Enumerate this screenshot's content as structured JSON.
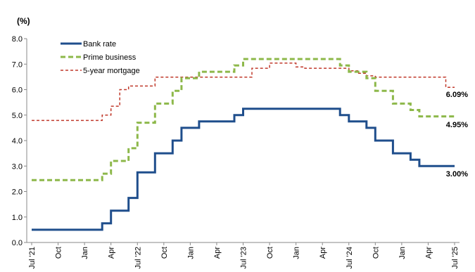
{
  "chart_data": {
    "type": "line",
    "ylabel": "(%)",
    "ylim": [
      0,
      8
    ],
    "yticks": [
      "0.0",
      "1.0",
      "2.0",
      "3.0",
      "4.0",
      "5.0",
      "6.0",
      "7.0",
      "8.0"
    ],
    "xticks": [
      "Jul '21",
      "Oct",
      "Jan",
      "Apr",
      "Jul '22",
      "Oct",
      "Jan",
      "Apr",
      "Jul '23",
      "Oct",
      "Jan",
      "Apr",
      "Jul '24",
      "Oct",
      "Jan",
      "Apr",
      "Jul '25"
    ],
    "legend_position": "top-left",
    "grid": false,
    "x_months": [
      "2021-07",
      "2021-08",
      "2021-09",
      "2021-10",
      "2021-11",
      "2021-12",
      "2022-01",
      "2022-02",
      "2022-03",
      "2022-04",
      "2022-05",
      "2022-06",
      "2022-07",
      "2022-08",
      "2022-09",
      "2022-10",
      "2022-11",
      "2022-12",
      "2023-01",
      "2023-02",
      "2023-03",
      "2023-04",
      "2023-05",
      "2023-06",
      "2023-07",
      "2023-08",
      "2023-09",
      "2023-10",
      "2023-11",
      "2023-12",
      "2024-01",
      "2024-02",
      "2024-03",
      "2024-04",
      "2024-05",
      "2024-06",
      "2024-07",
      "2024-08",
      "2024-09",
      "2024-10",
      "2024-11",
      "2024-12",
      "2025-01",
      "2025-02",
      "2025-03",
      "2025-04",
      "2025-05",
      "2025-06",
      "2025-07"
    ],
    "series": [
      {
        "name": "Bank rate",
        "color": "#1F4E8C",
        "style": "solid",
        "end_label": "3.00%",
        "values": [
          0.5,
          0.5,
          0.5,
          0.5,
          0.5,
          0.5,
          0.5,
          0.5,
          0.75,
          1.25,
          1.25,
          1.75,
          2.75,
          2.75,
          3.5,
          3.5,
          4.0,
          4.5,
          4.5,
          4.75,
          4.75,
          4.75,
          4.75,
          5.0,
          5.25,
          5.25,
          5.25,
          5.25,
          5.25,
          5.25,
          5.25,
          5.25,
          5.25,
          5.25,
          5.25,
          5.0,
          4.75,
          4.75,
          4.5,
          4.0,
          4.0,
          3.5,
          3.5,
          3.25,
          3.0,
          3.0,
          3.0,
          3.0,
          3.0
        ]
      },
      {
        "name": "Prime business",
        "color": "#8DB84A",
        "style": "dashed",
        "end_label": "4.95%",
        "values": [
          2.45,
          2.45,
          2.45,
          2.45,
          2.45,
          2.45,
          2.45,
          2.45,
          2.7,
          3.2,
          3.2,
          3.7,
          4.7,
          4.7,
          5.45,
          5.45,
          5.95,
          6.45,
          6.45,
          6.7,
          6.7,
          6.7,
          6.7,
          6.95,
          7.2,
          7.2,
          7.2,
          7.2,
          7.2,
          7.2,
          7.2,
          7.2,
          7.2,
          7.2,
          7.2,
          6.95,
          6.7,
          6.7,
          6.45,
          5.95,
          5.95,
          5.45,
          5.45,
          5.2,
          4.95,
          4.95,
          4.95,
          4.95,
          4.95
        ]
      },
      {
        "name": "5-year mortgage",
        "color": "#C0392B",
        "style": "dotted",
        "end_label": "6.09%",
        "values": [
          4.79,
          4.79,
          4.79,
          4.79,
          4.79,
          4.79,
          4.79,
          4.79,
          5.0,
          5.35,
          6.0,
          6.14,
          6.14,
          6.14,
          6.49,
          6.49,
          6.49,
          6.49,
          6.49,
          6.49,
          6.49,
          6.49,
          6.49,
          6.49,
          6.49,
          6.84,
          6.84,
          7.04,
          7.04,
          7.04,
          6.89,
          6.84,
          6.84,
          6.84,
          6.84,
          6.84,
          6.74,
          6.64,
          6.54,
          6.49,
          6.49,
          6.49,
          6.49,
          6.49,
          6.49,
          6.49,
          6.49,
          6.09,
          6.09
        ]
      }
    ]
  }
}
